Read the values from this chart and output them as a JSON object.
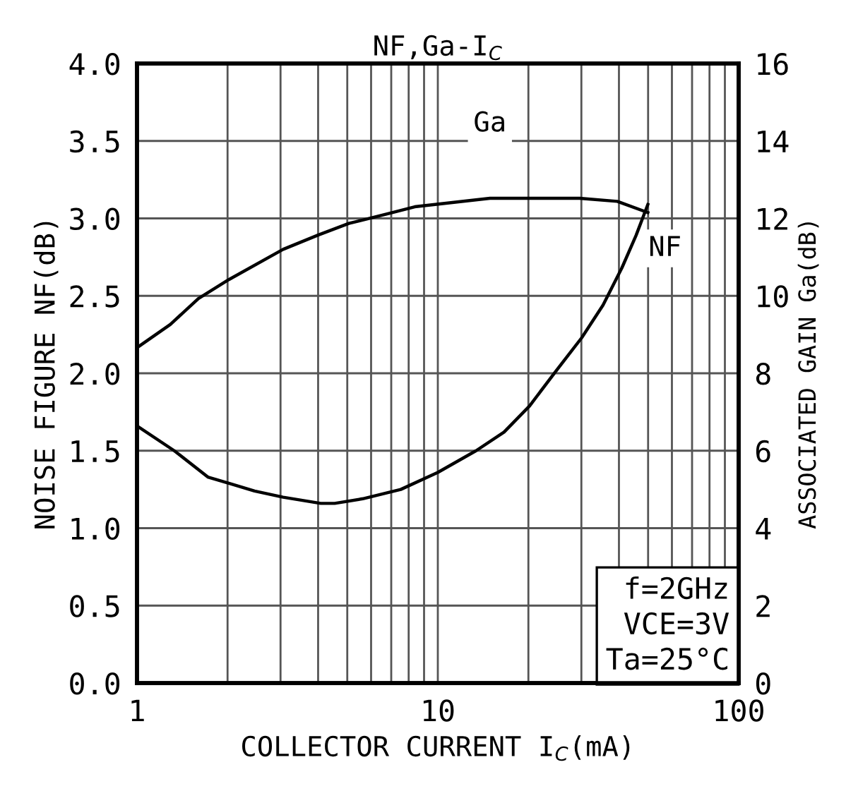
{
  "chart_data": {
    "type": "line",
    "title": "NF,Ga-I$_{C}$",
    "xlabel": "COLLECTOR CURRENT I$_{C}$(mA)",
    "ylabel": "NOISE FIGURE NF(dB)",
    "y2label": "ASSOCIATED GAIN Ga(dB)",
    "log": "x",
    "grid": true,
    "legend": false,
    "marker": "none",
    "line_style": "solid",
    "xlim": [
      1,
      100
    ],
    "xticks": [
      1,
      {
        "value": 2,
        "label": null
      },
      {
        "value": 3,
        "label": null
      },
      {
        "value": 4,
        "label": null
      },
      {
        "value": 5,
        "label": null
      },
      {
        "value": 6,
        "label": null
      },
      {
        "value": 7,
        "label": null
      },
      {
        "value": 8,
        "label": null
      },
      {
        "value": 9,
        "label": null
      },
      10,
      {
        "value": 20,
        "label": null
      },
      {
        "value": 30,
        "label": null
      },
      {
        "value": 40,
        "label": null
      },
      {
        "value": 50,
        "label": null
      },
      {
        "value": 60,
        "label": null
      },
      {
        "value": 70,
        "label": null
      },
      {
        "value": 80,
        "label": null
      },
      {
        "value": 90,
        "label": null
      },
      100
    ],
    "ylim": [
      0,
      4
    ],
    "yticks": [
      {
        "value": 0,
        "label": "0.0"
      },
      {
        "value": 0.5,
        "label": "0.5"
      },
      {
        "value": 1,
        "label": "1.0"
      },
      {
        "value": 1.5,
        "label": "1.5"
      },
      {
        "value": 2,
        "label": "2.0"
      },
      {
        "value": 2.5,
        "label": "2.5"
      },
      {
        "value": 3,
        "label": "3.0"
      },
      {
        "value": 3.5,
        "label": "3.5"
      },
      {
        "value": 4,
        "label": "4.0"
      }
    ],
    "y2lim": [
      0,
      16
    ],
    "y2ticks": [
      0,
      2,
      4,
      6,
      8,
      10,
      12,
      14,
      16
    ],
    "series": [
      {
        "name": "NF",
        "color": "#000000",
        "x": [
          1,
          1.33,
          1.72,
          2.02,
          2.46,
          3.06,
          4.08,
          4.54,
          5.63,
          7.53,
          10,
          13.4,
          16.6,
          20.2,
          24.6,
          30.1,
          35.4,
          40.9,
          45.6,
          49.9
        ],
        "values": [
          1.66,
          1.5,
          1.33,
          1.29,
          1.24,
          1.2,
          1.16,
          1.16,
          1.19,
          1.25,
          1.36,
          1.5,
          1.62,
          1.79,
          2.01,
          2.23,
          2.44,
          2.68,
          2.89,
          3.09
        ]
      },
      {
        "name": "Ga",
        "color": "#000000",
        "axis": "y2",
        "x": [
          1,
          1.29,
          1.6,
          2.02,
          3.06,
          4,
          5.06,
          6.75,
          8.38,
          14.9,
          29.6,
          39.5,
          49.9
        ],
        "values": [
          8.66,
          9.26,
          9.93,
          10.42,
          11.2,
          11.57,
          11.87,
          12.11,
          12.3,
          12.52,
          12.52,
          12.44,
          12.15
        ]
      }
    ],
    "annotations": [
      "f=2GHz",
      "VCE=3V",
      "Ta=25°C"
    ]
  }
}
